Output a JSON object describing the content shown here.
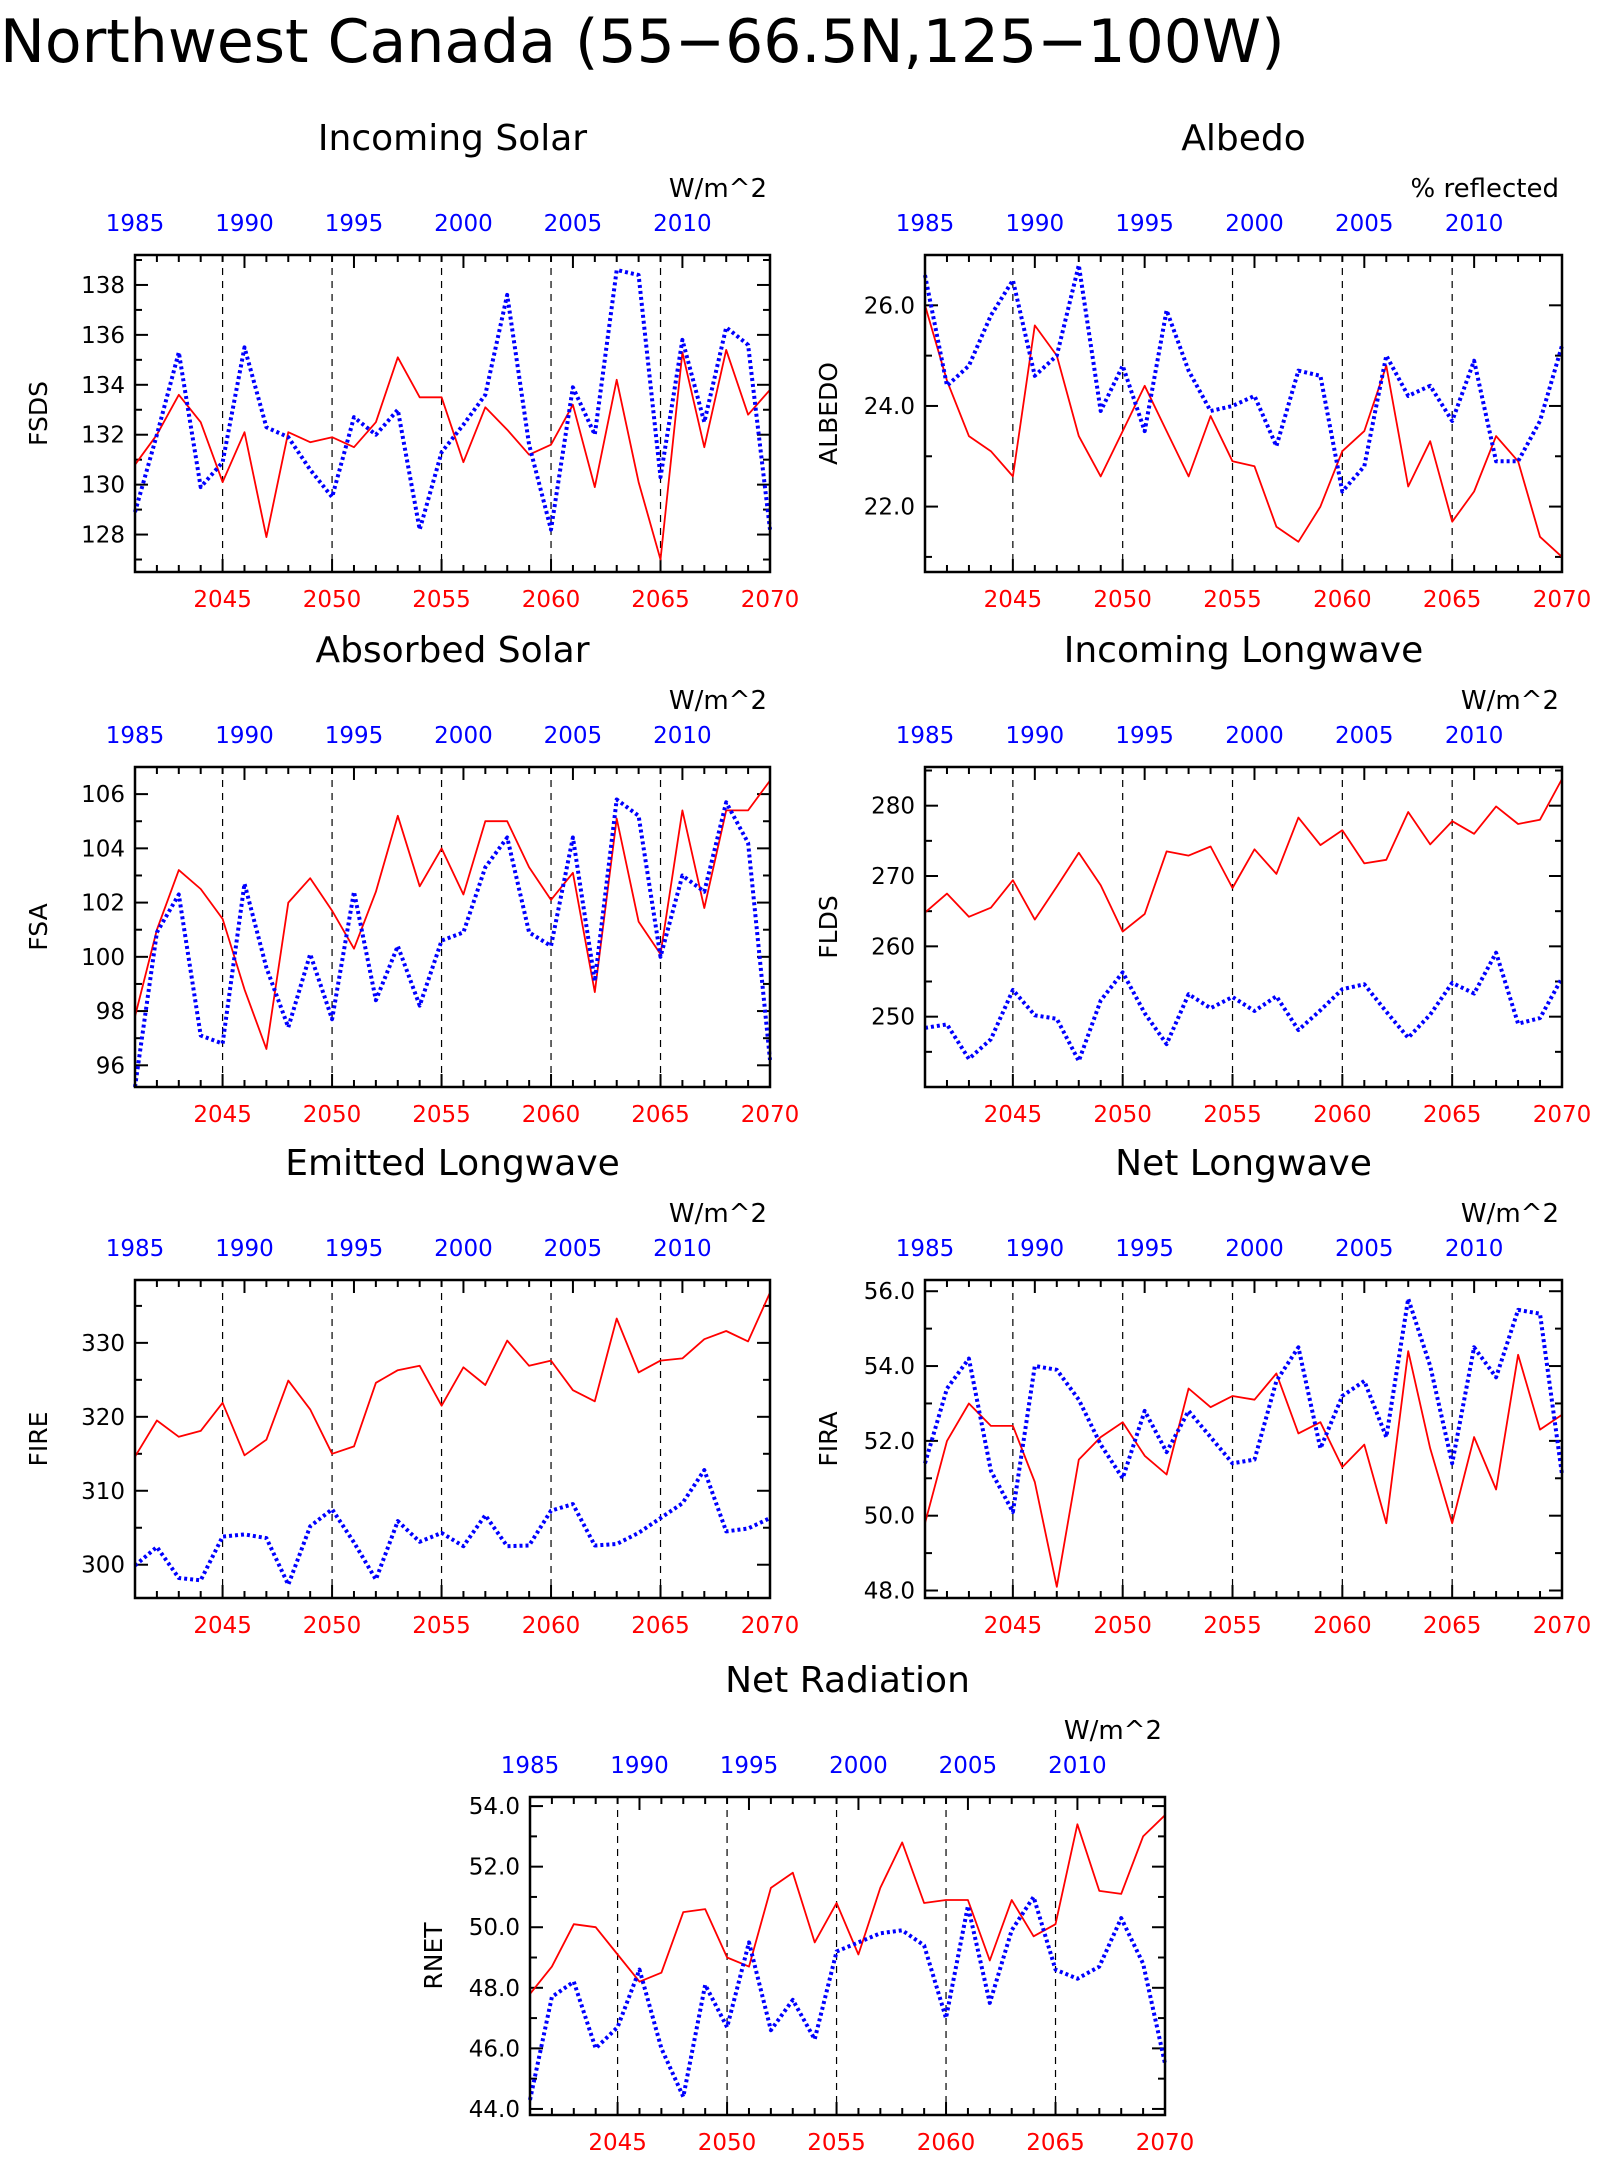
{
  "figure_title": "Northwest Canada (55−66.5N,125−100W)",
  "colors": {
    "future": "#ff0000",
    "historical": "#0000ff"
  },
  "chart_data": [
    {
      "type": "line",
      "title": "Incoming Solar",
      "ylabel": "FSDS",
      "units": "W/m^2",
      "ylim": [
        126.5,
        139.2
      ],
      "yticks": [
        128,
        130,
        132,
        134,
        136,
        138
      ],
      "ytick_labels": [
        "128",
        "130",
        "132",
        "134",
        "136",
        "138"
      ],
      "x_bottom_ticks": [
        "2045",
        "2050",
        "2055",
        "2060",
        "2065",
        "2070"
      ],
      "x_top_ticks": [
        "1985",
        "1990",
        "1995",
        "2000",
        "2005",
        "2010"
      ],
      "xlim": [
        2041,
        2070
      ],
      "grid_x": [
        2045,
        2050,
        2055,
        2060,
        2065
      ],
      "series": [
        {
          "values": [
            130.8,
            132.0,
            133.6,
            132.5,
            130.1,
            132.1,
            127.9,
            132.1,
            131.7,
            131.9,
            131.5,
            132.5,
            135.1,
            133.5,
            133.5,
            130.9,
            133.1,
            132.2,
            131.2,
            131.6,
            133.2,
            129.9,
            134.2,
            130.1,
            127.0,
            135.3,
            131.5,
            135.4,
            132.8,
            133.8
          ]
        },
        {
          "values": [
            128.9,
            132.0,
            135.3,
            129.9,
            130.9,
            135.5,
            132.3,
            131.9,
            130.6,
            129.5,
            132.7,
            132.0,
            133.0,
            128.2,
            131.3,
            132.4,
            133.6,
            137.6,
            131.6,
            128.2,
            133.9,
            132.0,
            138.6,
            138.4,
            130.3,
            135.8,
            132.5,
            136.3,
            135.6,
            128.2
          ]
        }
      ]
    },
    {
      "type": "line",
      "title": "Albedo",
      "ylabel": "ALBEDO",
      "units": "% reflected",
      "ylim": [
        20.7,
        27.0
      ],
      "yticks": [
        22,
        24,
        26
      ],
      "ytick_labels": [
        "22.0",
        "24.0",
        "26.0"
      ],
      "x_bottom_ticks": [
        "2045",
        "2050",
        "2055",
        "2060",
        "2065",
        "2070"
      ],
      "x_top_ticks": [
        "1985",
        "1990",
        "1995",
        "2000",
        "2005",
        "2010"
      ],
      "xlim": [
        2041,
        2070
      ],
      "grid_x": [
        2045,
        2050,
        2055,
        2060,
        2065
      ],
      "series": [
        {
          "values": [
            26.0,
            24.5,
            23.4,
            23.1,
            22.6,
            25.6,
            25.0,
            23.4,
            22.6,
            23.5,
            24.4,
            23.5,
            22.6,
            23.8,
            22.9,
            22.8,
            21.6,
            21.3,
            22.0,
            23.1,
            23.5,
            24.8,
            22.4,
            23.3,
            21.7,
            22.3,
            23.4,
            22.9,
            21.4,
            21.0
          ]
        },
        {
          "values": [
            26.6,
            24.4,
            24.8,
            25.8,
            26.5,
            24.6,
            25.0,
            26.8,
            23.9,
            24.8,
            23.5,
            25.9,
            24.7,
            23.9,
            24.0,
            24.2,
            23.2,
            24.7,
            24.6,
            22.3,
            22.8,
            25.0,
            24.2,
            24.4,
            23.7,
            24.9,
            22.9,
            22.9,
            23.7,
            25.2
          ]
        }
      ]
    },
    {
      "type": "line",
      "title": "Absorbed Solar",
      "ylabel": "FSA",
      "units": "W/m^2",
      "ylim": [
        95.2,
        107.0
      ],
      "yticks": [
        96,
        98,
        100,
        102,
        104,
        106
      ],
      "ytick_labels": [
        "96",
        "98",
        "100",
        "102",
        "104",
        "106"
      ],
      "x_bottom_ticks": [
        "2045",
        "2050",
        "2055",
        "2060",
        "2065",
        "2070"
      ],
      "x_top_ticks": [
        "1985",
        "1990",
        "1995",
        "2000",
        "2005",
        "2010"
      ],
      "xlim": [
        2041,
        2070
      ],
      "grid_x": [
        2045,
        2050,
        2055,
        2060,
        2065
      ],
      "series": [
        {
          "values": [
            97.8,
            101.0,
            103.2,
            102.5,
            101.4,
            98.8,
            96.6,
            102.0,
            102.9,
            101.7,
            100.3,
            102.4,
            105.2,
            102.6,
            104.0,
            102.3,
            105.0,
            105.0,
            103.3,
            102.1,
            103.1,
            98.7,
            105.1,
            101.3,
            100.1,
            105.4,
            101.8,
            105.4,
            105.4,
            106.5
          ]
        },
        {
          "values": [
            95.2,
            100.9,
            102.3,
            97.1,
            96.8,
            102.7,
            99.6,
            97.4,
            100.1,
            97.7,
            102.4,
            98.4,
            100.4,
            98.2,
            100.6,
            100.9,
            103.3,
            104.4,
            100.9,
            100.4,
            104.4,
            99.1,
            105.8,
            105.2,
            100.0,
            103.0,
            102.4,
            105.7,
            104.2,
            96.2
          ]
        }
      ]
    },
    {
      "type": "line",
      "title": "Incoming Longwave",
      "ylabel": "FLDS",
      "units": "W/m^2",
      "ylim": [
        240,
        285.5
      ],
      "yticks": [
        250,
        260,
        270,
        280
      ],
      "ytick_labels": [
        "250",
        "260",
        "270",
        "280"
      ],
      "x_bottom_ticks": [
        "2045",
        "2050",
        "2055",
        "2060",
        "2065",
        "2070"
      ],
      "x_top_ticks": [
        "1985",
        "1990",
        "1995",
        "2000",
        "2005",
        "2010"
      ],
      "xlim": [
        2041,
        2070
      ],
      "grid_x": [
        2045,
        2050,
        2055,
        2060,
        2065
      ],
      "series": [
        {
          "values": [
            264.8,
            267.5,
            264.2,
            265.5,
            269.4,
            263.8,
            268.5,
            273.3,
            268.7,
            262.1,
            264.6,
            273.5,
            272.9,
            274.2,
            268.3,
            273.8,
            270.3,
            278.3,
            274.4,
            276.5,
            271.8,
            272.3,
            279.1,
            274.5,
            277.8,
            276.0,
            279.9,
            277.4,
            278.0,
            283.8
          ]
        },
        {
          "values": [
            248.4,
            248.9,
            244.0,
            246.8,
            253.8,
            250.2,
            249.7,
            243.7,
            252.3,
            256.3,
            250.5,
            246.1,
            253.2,
            251.2,
            252.8,
            250.8,
            252.9,
            248.1,
            250.9,
            253.9,
            254.6,
            250.7,
            247.0,
            250.3,
            254.8,
            253.3,
            259.1,
            249.0,
            249.8,
            255.5
          ]
        }
      ]
    },
    {
      "type": "line",
      "title": "Emitted Longwave",
      "ylabel": "FIRE",
      "units": "W/m^2",
      "ylim": [
        295.5,
        338.5
      ],
      "yticks": [
        300,
        310,
        320,
        330
      ],
      "ytick_labels": [
        "300",
        "310",
        "320",
        "330"
      ],
      "x_bottom_ticks": [
        "2045",
        "2050",
        "2055",
        "2060",
        "2065",
        "2070"
      ],
      "x_top_ticks": [
        "1985",
        "1990",
        "1995",
        "2000",
        "2005",
        "2010"
      ],
      "xlim": [
        2041,
        2070
      ],
      "grid_x": [
        2045,
        2050,
        2055,
        2060,
        2065
      ],
      "series": [
        {
          "values": [
            314.6,
            319.5,
            317.3,
            318.1,
            321.9,
            314.8,
            316.9,
            324.9,
            321.0,
            315.0,
            316.0,
            324.6,
            326.3,
            326.9,
            321.5,
            326.7,
            324.3,
            330.3,
            326.9,
            327.6,
            323.6,
            322.1,
            333.3,
            326.0,
            327.6,
            327.9,
            330.5,
            331.6,
            330.2,
            336.8
          ]
        },
        {
          "values": [
            299.9,
            302.4,
            298.2,
            297.9,
            303.8,
            304.1,
            303.6,
            297.3,
            305.2,
            307.5,
            303.0,
            298.0,
            305.9,
            303.1,
            304.3,
            302.5,
            306.7,
            302.5,
            302.6,
            307.3,
            308.2,
            302.6,
            302.8,
            304.3,
            306.3,
            308.3,
            312.8,
            304.5,
            304.9,
            306.3
          ]
        }
      ]
    },
    {
      "type": "line",
      "title": "Net Longwave",
      "ylabel": "FIRA",
      "units": "W/m^2",
      "ylim": [
        47.8,
        56.3
      ],
      "yticks": [
        48,
        50,
        52,
        54,
        56
      ],
      "ytick_labels": [
        "48.0",
        "50.0",
        "52.0",
        "54.0",
        "56.0"
      ],
      "x_bottom_ticks": [
        "2045",
        "2050",
        "2055",
        "2060",
        "2065",
        "2070"
      ],
      "x_top_ticks": [
        "1985",
        "1990",
        "1995",
        "2000",
        "2005",
        "2010"
      ],
      "xlim": [
        2041,
        2070
      ],
      "grid_x": [
        2045,
        2050,
        2055,
        2060,
        2065
      ],
      "series": [
        {
          "values": [
            49.8,
            52.0,
            53.0,
            52.4,
            52.4,
            50.9,
            48.1,
            51.5,
            52.1,
            52.5,
            51.6,
            51.1,
            53.4,
            52.9,
            53.2,
            53.1,
            53.8,
            52.2,
            52.5,
            51.3,
            51.9,
            49.8,
            54.4,
            51.8,
            49.8,
            52.1,
            50.7,
            54.3,
            52.3,
            52.7
          ]
        },
        {
          "values": [
            51.4,
            53.4,
            54.2,
            51.2,
            50.1,
            54.0,
            53.9,
            53.1,
            51.9,
            51.0,
            52.8,
            51.7,
            52.8,
            52.1,
            51.4,
            51.5,
            53.6,
            54.5,
            51.8,
            53.2,
            53.6,
            52.1,
            55.8,
            54.0,
            51.4,
            54.5,
            53.7,
            55.5,
            55.4,
            51.1
          ]
        }
      ]
    },
    {
      "type": "line",
      "title": "Net Radiation",
      "ylabel": "RNET",
      "units": "W/m^2",
      "ylim": [
        43.8,
        54.3
      ],
      "yticks": [
        44,
        46,
        48,
        50,
        52,
        54
      ],
      "ytick_labels": [
        "44.0",
        "46.0",
        "48.0",
        "50.0",
        "52.0",
        "54.0"
      ],
      "x_bottom_ticks": [
        "2045",
        "2050",
        "2055",
        "2060",
        "2065",
        "2070"
      ],
      "x_top_ticks": [
        "1985",
        "1990",
        "1995",
        "2000",
        "2005",
        "2010"
      ],
      "xlim": [
        2041,
        2070
      ],
      "grid_x": [
        2045,
        2050,
        2055,
        2060,
        2065
      ],
      "series": [
        {
          "values": [
            47.8,
            48.7,
            50.1,
            50.0,
            49.1,
            48.2,
            48.5,
            50.5,
            50.6,
            49.0,
            48.7,
            51.3,
            51.8,
            49.5,
            50.8,
            49.1,
            51.3,
            52.8,
            50.8,
            50.9,
            50.9,
            48.9,
            50.9,
            49.7,
            50.1,
            53.4,
            51.2,
            51.1,
            53.0,
            53.7
          ]
        },
        {
          "values": [
            44.3,
            47.7,
            48.2,
            46.0,
            46.7,
            48.6,
            46.0,
            44.4,
            48.1,
            46.7,
            49.5,
            46.6,
            47.6,
            46.3,
            49.2,
            49.5,
            49.8,
            49.9,
            49.4,
            47.0,
            50.7,
            47.5,
            49.9,
            51.0,
            48.6,
            48.3,
            48.7,
            50.3,
            48.8,
            45.5
          ]
        }
      ]
    }
  ]
}
